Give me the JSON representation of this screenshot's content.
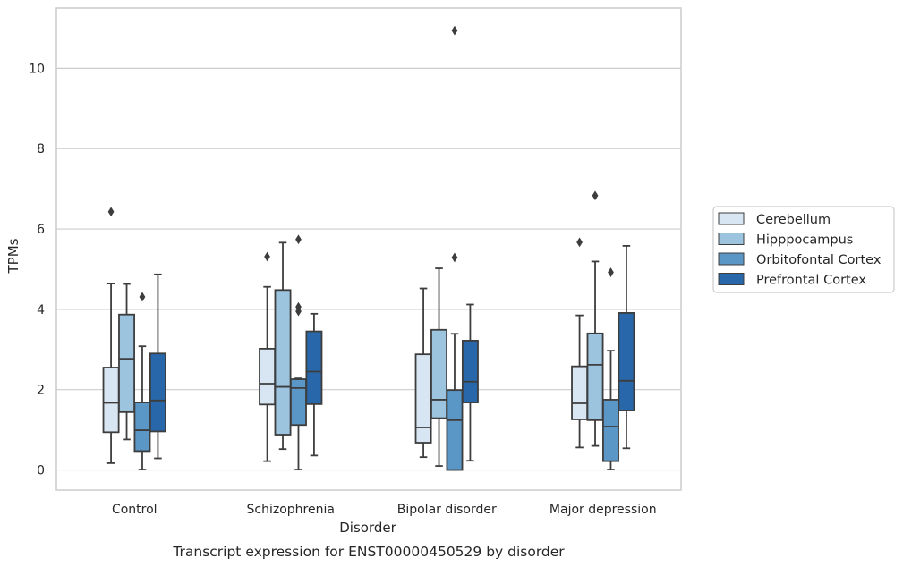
{
  "chart_data": {
    "type": "box",
    "title": "",
    "caption": "Transcript expression for ENST00000450529 by disorder",
    "xlabel": "Disorder",
    "ylabel": "TPMs",
    "ylim": [
      -0.5,
      11.5
    ],
    "yticks": [
      0,
      2,
      4,
      6,
      8,
      10
    ],
    "grid": "horizontal",
    "legend_position": "right",
    "categories": [
      "Control",
      "Schizophrenia",
      "Bipolar disorder",
      "Major depression"
    ],
    "series": [
      {
        "name": "Cerebellum",
        "color": "#d8e6f3",
        "boxes": [
          {
            "whisker_low": 0.17,
            "q1": 0.94,
            "median": 1.67,
            "q3": 2.55,
            "whisker_high": 4.64,
            "outliers": [
              6.43
            ]
          },
          {
            "whisker_low": 0.22,
            "q1": 1.63,
            "median": 2.15,
            "q3": 3.02,
            "whisker_high": 4.56,
            "outliers": [
              5.31
            ]
          },
          {
            "whisker_low": 0.32,
            "q1": 0.68,
            "median": 1.06,
            "q3": 2.88,
            "whisker_high": 4.52,
            "outliers": []
          },
          {
            "whisker_low": 0.56,
            "q1": 1.26,
            "median": 1.66,
            "q3": 2.58,
            "whisker_high": 3.85,
            "outliers": [
              5.67
            ]
          }
        ]
      },
      {
        "name": "Hipppocampus",
        "color": "#9dc4de",
        "boxes": [
          {
            "whisker_low": 0.76,
            "q1": 1.44,
            "median": 2.77,
            "q3": 3.87,
            "whisker_high": 4.63,
            "outliers": []
          },
          {
            "whisker_low": 0.52,
            "q1": 0.88,
            "median": 2.07,
            "q3": 4.48,
            "whisker_high": 5.66,
            "outliers": []
          },
          {
            "whisker_low": 0.1,
            "q1": 1.29,
            "median": 1.75,
            "q3": 3.49,
            "whisker_high": 5.02,
            "outliers": []
          },
          {
            "whisker_low": 0.6,
            "q1": 1.24,
            "median": 2.62,
            "q3": 3.4,
            "whisker_high": 5.19,
            "outliers": [
              6.83
            ]
          }
        ]
      },
      {
        "name": "Orbitofontal Cortex",
        "color": "#5b97c6",
        "boxes": [
          {
            "whisker_low": 0.01,
            "q1": 0.47,
            "median": 0.99,
            "q3": 1.68,
            "whisker_high": 3.08,
            "outliers": [
              4.31
            ]
          },
          {
            "whisker_low": 0.01,
            "q1": 1.12,
            "median": 2.04,
            "q3": 2.26,
            "whisker_high": 2.28,
            "outliers": [
              3.95,
              4.06,
              5.74
            ]
          },
          {
            "whisker_low": 0.0,
            "q1": 0.0,
            "median": 1.24,
            "q3": 1.99,
            "whisker_high": 3.39,
            "outliers": [
              5.29,
              10.94
            ]
          },
          {
            "whisker_low": 0.01,
            "q1": 0.22,
            "median": 1.08,
            "q3": 1.75,
            "whisker_high": 2.97,
            "outliers": [
              4.92
            ]
          }
        ]
      },
      {
        "name": "Prefrontal Cortex",
        "color": "#2868aa",
        "boxes": [
          {
            "whisker_low": 0.29,
            "q1": 0.96,
            "median": 1.73,
            "q3": 2.9,
            "whisker_high": 4.87,
            "outliers": []
          },
          {
            "whisker_low": 0.36,
            "q1": 1.64,
            "median": 2.45,
            "q3": 3.45,
            "whisker_high": 3.89,
            "outliers": []
          },
          {
            "whisker_low": 0.23,
            "q1": 1.68,
            "median": 2.2,
            "q3": 3.22,
            "whisker_high": 4.12,
            "outliers": []
          },
          {
            "whisker_low": 0.54,
            "q1": 1.48,
            "median": 2.22,
            "q3": 3.91,
            "whisker_high": 5.58,
            "outliers": []
          }
        ]
      }
    ]
  }
}
